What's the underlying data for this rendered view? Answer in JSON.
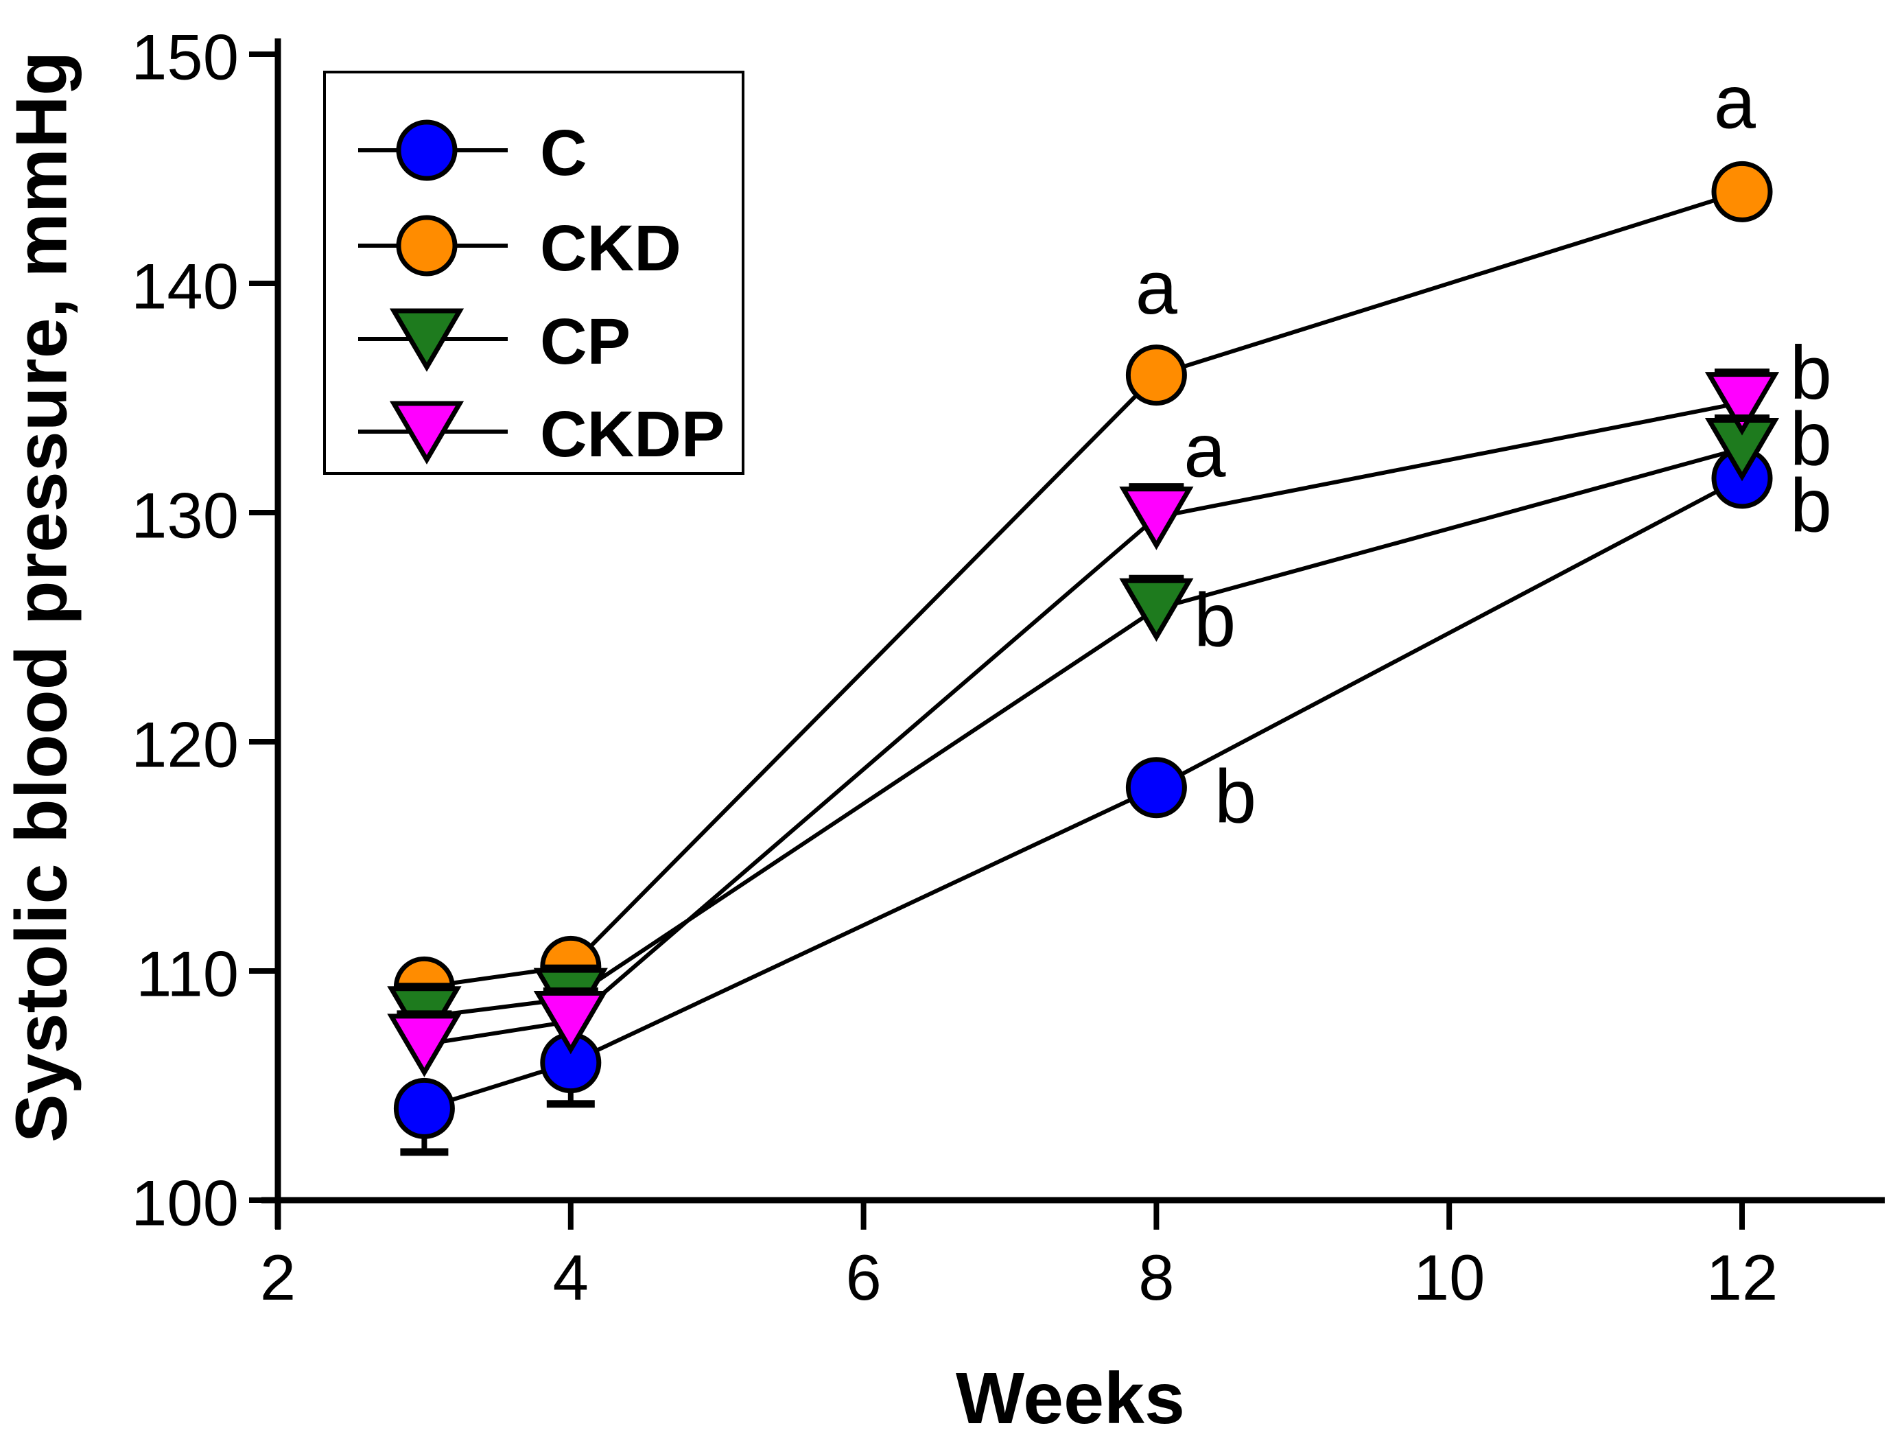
{
  "chart_data": {
    "type": "line",
    "title": "",
    "xlabel": "Weeks",
    "ylabel": "Systolic blood pressure, mmHg",
    "x_axis": {
      "ticks": [
        2,
        4,
        6,
        8,
        10,
        12
      ],
      "range": [
        2,
        12.97
      ]
    },
    "y_axis": {
      "ticks": [
        100,
        110,
        120,
        130,
        140,
        150
      ],
      "range": [
        100,
        150
      ]
    },
    "x": [
      3,
      4,
      8,
      12
    ],
    "series": [
      {
        "name": "C",
        "marker": "circle",
        "color": "#0000ff",
        "values": [
          104.0,
          106.0,
          118.0,
          131.5
        ]
      },
      {
        "name": "CKD",
        "marker": "circle",
        "color": "#ff8c00",
        "values": [
          109.3,
          110.2,
          136.0,
          144.0
        ]
      },
      {
        "name": "CP",
        "marker": "triangle-down",
        "color": "#1e7b1e",
        "values": [
          108.0,
          108.8,
          125.8,
          132.8
        ]
      },
      {
        "name": "CKDP",
        "marker": "triangle-down",
        "color": "#ff00ff",
        "values": [
          106.8,
          107.8,
          129.8,
          134.8
        ]
      }
    ],
    "error_bars_down": [
      {
        "series": "C",
        "week": 3,
        "to": 102.1
      },
      {
        "series": "C",
        "week": 4,
        "to": 104.2
      }
    ],
    "error_caps_top": {
      "CP": [
        3,
        4,
        8,
        12
      ],
      "CKDP": [
        3,
        4,
        8,
        12
      ]
    },
    "annotations": [
      {
        "text": "a",
        "week": 8.0,
        "mmHg": 139.8
      },
      {
        "text": "a",
        "week": 8.33,
        "mmHg": 132.7
      },
      {
        "text": "b",
        "week": 8.4,
        "mmHg": 125.3
      },
      {
        "text": "b",
        "week": 8.54,
        "mmHg": 117.6
      },
      {
        "text": "a",
        "week": 11.95,
        "mmHg": 147.9
      },
      {
        "text": "b",
        "week": 12.47,
        "mmHg": 136.1
      },
      {
        "text": "b",
        "week": 12.47,
        "mmHg": 133.2
      },
      {
        "text": "b",
        "week": 12.47,
        "mmHg": 130.3
      }
    ],
    "legend": {
      "position": "upper-left",
      "items": [
        "C",
        "CKD",
        "CP",
        "CKDP"
      ]
    },
    "grid": false,
    "colors": {
      "axis": "#000000",
      "background": "#ffffff",
      "text": "#000000"
    }
  }
}
